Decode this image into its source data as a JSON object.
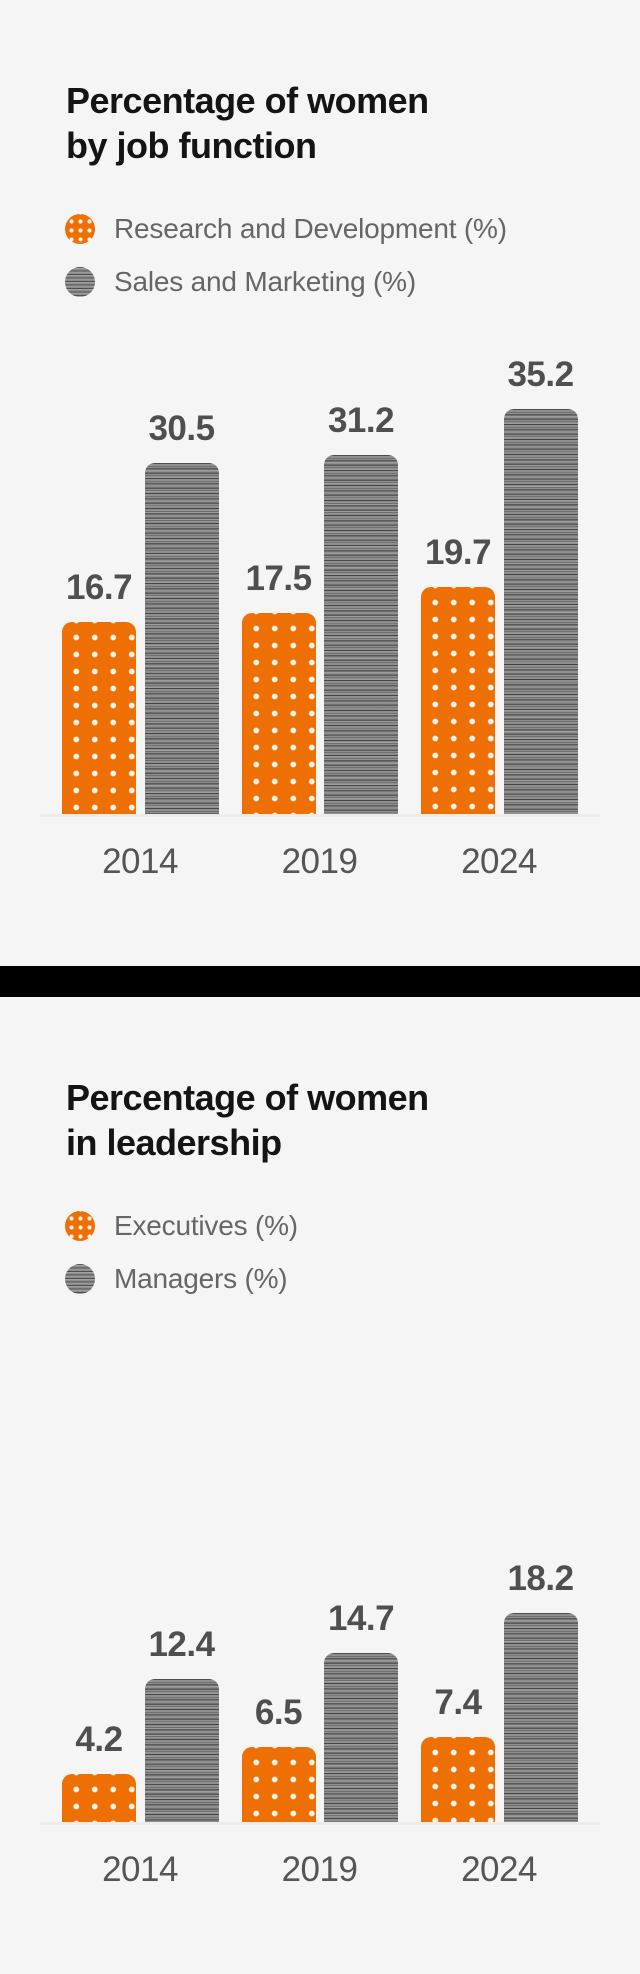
{
  "page": {
    "background": "#f5f5f5",
    "divider_color": "#000000"
  },
  "colors": {
    "orange": "#ee7005",
    "gray": "#8e8e8e",
    "title_text": "#141414",
    "legend_text": "#666666",
    "value_text": "#4f4f4f",
    "axis_text": "#555555"
  },
  "charts": [
    {
      "title_lines": [
        "Percentage of women",
        "by job function"
      ],
      "legend": [
        {
          "label": "Research and Development (%)",
          "swatch": "orange-dotted"
        },
        {
          "label": "Sales and Marketing (%)",
          "swatch": "gray-striped"
        }
      ]
    },
    {
      "title_lines": [
        "Percentage of women",
        "in leadership"
      ],
      "legend": [
        {
          "label": "Executives (%)",
          "swatch": "orange-dotted"
        },
        {
          "label": "Managers (%)",
          "swatch": "gray-striped"
        }
      ]
    }
  ],
  "chart_data": [
    {
      "type": "bar",
      "title": "Percentage of women by job function",
      "categories": [
        "2014",
        "2019",
        "2024"
      ],
      "series": [
        {
          "name": "Research and Development (%)",
          "color": "#ee7005",
          "pattern": "white-dots",
          "values": [
            16.7,
            17.5,
            19.7
          ]
        },
        {
          "name": "Sales and Marketing (%)",
          "color": "#8e8e8e",
          "pattern": "horizontal-stripes",
          "values": [
            30.5,
            31.2,
            35.2
          ]
        }
      ],
      "value_labels_shown": true,
      "y_axis_shown": false,
      "grid": false,
      "legend_position": "top-left"
    },
    {
      "type": "bar",
      "title": "Percentage of women in leadership",
      "categories": [
        "2014",
        "2019",
        "2024"
      ],
      "series": [
        {
          "name": "Executives (%)",
          "color": "#ee7005",
          "pattern": "white-dots",
          "values": [
            4.2,
            6.5,
            7.4
          ]
        },
        {
          "name": "Managers (%)",
          "color": "#8e8e8e",
          "pattern": "horizontal-stripes",
          "values": [
            12.4,
            14.7,
            18.2
          ]
        }
      ],
      "value_labels_shown": true,
      "y_axis_shown": false,
      "grid": false,
      "legend_position": "top-left"
    }
  ]
}
